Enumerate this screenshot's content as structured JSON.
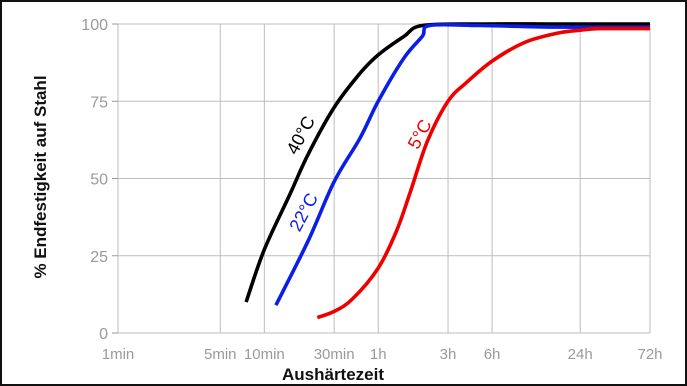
{
  "chart_data": {
    "type": "line",
    "title": "",
    "xlabel": "Aushärtezeit",
    "ylabel": "% Endfestigkeit auf Stahl",
    "x_scale": "log",
    "xlim": [
      "1min",
      "72h"
    ],
    "ylim": [
      0,
      100
    ],
    "grid": true,
    "x_ticks": [
      {
        "label": "1min",
        "minutes": 1
      },
      {
        "label": "5min",
        "minutes": 5
      },
      {
        "label": "10min",
        "minutes": 10
      },
      {
        "label": "30min",
        "minutes": 30
      },
      {
        "label": "1h",
        "minutes": 60
      },
      {
        "label": "3h",
        "minutes": 180
      },
      {
        "label": "6h",
        "minutes": 360
      },
      {
        "label": "24h",
        "minutes": 1440
      },
      {
        "label": "72h",
        "minutes": 4320
      }
    ],
    "y_ticks": [
      0,
      25,
      50,
      75,
      100
    ],
    "series": [
      {
        "name": "40°C",
        "color": "#000000",
        "x_minutes": [
          7.5,
          10,
          15,
          20,
          30,
          45,
          60,
          90,
          120,
          300,
          1000,
          4320
        ],
        "y": [
          10,
          27,
          45,
          58,
          73,
          84,
          90,
          96,
          99.5,
          100,
          100,
          100
        ]
      },
      {
        "name": "22°C",
        "color": "#0a1ee6",
        "x_minutes": [
          12,
          20,
          30,
          45,
          60,
          90,
          120,
          135,
          300,
          1000,
          4320
        ],
        "y": [
          9,
          30,
          49,
          63,
          75,
          89,
          96,
          99.5,
          99.5,
          99,
          99
        ]
      },
      {
        "name": "5°C",
        "color": "#ee0000",
        "x_minutes": [
          23,
          30,
          40,
          60,
          80,
          100,
          130,
          180,
          240,
          360,
          600,
          1000,
          1440,
          2000,
          4320
        ],
        "y": [
          5,
          7,
          11,
          21,
          33,
          46,
          62,
          75,
          81,
          88,
          94,
          97,
          98,
          98.5,
          98.5
        ]
      }
    ]
  }
}
